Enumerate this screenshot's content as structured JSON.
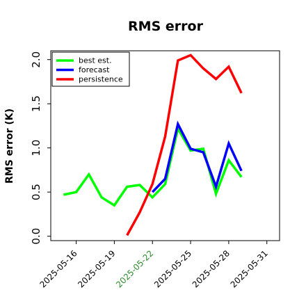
{
  "chart_data": {
    "type": "line",
    "title": "RMS error",
    "xlabel": "",
    "ylabel": "RMS error (K)",
    "ylim": [
      -0.05,
      2.1
    ],
    "yticks": [
      0.0,
      0.5,
      1.0,
      1.5,
      2.0
    ],
    "ytick_labels": [
      "0.0",
      "0.5",
      "1.0",
      "1.5",
      "2.0"
    ],
    "xlim": [
      "2025-05-14",
      "2025-06-01"
    ],
    "xticks": [
      "2025-05-16",
      "2025-05-19",
      "2025-05-22",
      "2025-05-25",
      "2025-05-28",
      "2025-05-31"
    ],
    "xtick_labels": [
      "2025-05-16",
      "2025-05-19",
      "2025-05-22",
      "2025-05-25",
      "2025-05-28",
      "2025-05-31"
    ],
    "highlight_tick": "2025-05-22",
    "highlight_color": "#2e8b2e",
    "grid": false,
    "legend_position": "top-left",
    "series": [
      {
        "name": "best est.",
        "color": "#00ff00",
        "points": [
          [
            "2025-05-15",
            0.47
          ],
          [
            "2025-05-16",
            0.5
          ],
          [
            "2025-05-17",
            0.7
          ],
          [
            "2025-05-18",
            0.44
          ],
          [
            "2025-05-19",
            0.35
          ],
          [
            "2025-05-20",
            0.56
          ],
          [
            "2025-05-21",
            0.58
          ],
          [
            "2025-05-22",
            0.44
          ],
          [
            "2025-05-23",
            0.59
          ],
          [
            "2025-05-24",
            1.22
          ],
          [
            "2025-05-25",
            0.97
          ],
          [
            "2025-05-26",
            0.99
          ],
          [
            "2025-05-27",
            0.48
          ],
          [
            "2025-05-28",
            0.86
          ],
          [
            "2025-05-29",
            0.67
          ]
        ]
      },
      {
        "name": "forecast",
        "color": "#0000ff",
        "points": [
          [
            "2025-05-22",
            0.5
          ],
          [
            "2025-05-23",
            0.65
          ],
          [
            "2025-05-24",
            1.27
          ],
          [
            "2025-05-25",
            0.99
          ],
          [
            "2025-05-26",
            0.95
          ],
          [
            "2025-05-27",
            0.56
          ],
          [
            "2025-05-28",
            1.05
          ],
          [
            "2025-05-29",
            0.74
          ]
        ]
      },
      {
        "name": "persistence",
        "color": "#ff0000",
        "points": [
          [
            "2025-05-20",
            0.01
          ],
          [
            "2025-05-21",
            0.27
          ],
          [
            "2025-05-22",
            0.59
          ],
          [
            "2025-05-23",
            1.13
          ],
          [
            "2025-05-24",
            1.99
          ],
          [
            "2025-05-25",
            2.05
          ],
          [
            "2025-05-26",
            1.9
          ],
          [
            "2025-05-27",
            1.78
          ],
          [
            "2025-05-28",
            1.92
          ],
          [
            "2025-05-29",
            1.62
          ]
        ]
      }
    ]
  }
}
